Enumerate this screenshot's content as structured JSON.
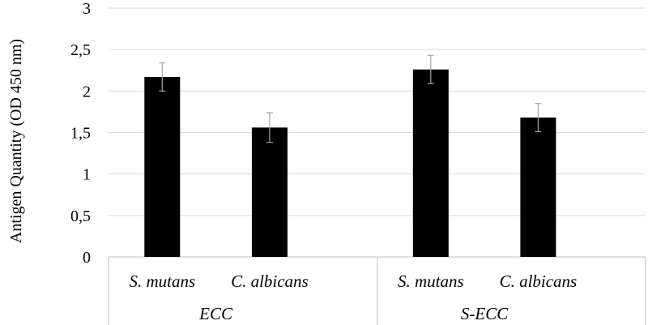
{
  "chart_data": {
    "type": "bar",
    "title": "",
    "ylabel": "Antigen Quantity (OD 450 nm)",
    "xlabel": "",
    "ylim": [
      0,
      3
    ],
    "yticks": [
      "0",
      "0,5",
      "1",
      "1,5",
      "2",
      "2,5",
      "3"
    ],
    "ytick_values": [
      0,
      0.5,
      1,
      1.5,
      2,
      2.5,
      3
    ],
    "grid": true,
    "groups": [
      {
        "name": "ECC",
        "categories": [
          "S. mutans",
          "C. albicans"
        ],
        "values": [
          2.17,
          1.56
        ],
        "errors": [
          0.17,
          0.18
        ]
      },
      {
        "name": "S-ECC",
        "categories": [
          "S. mutans",
          "C. albicans"
        ],
        "values": [
          2.26,
          1.68
        ],
        "errors": [
          0.17,
          0.17
        ]
      }
    ],
    "colors": {
      "bar": "#000000",
      "grid": "#d9d9d9",
      "axis": "#bfbfbf",
      "error": "#a6a6a6"
    }
  }
}
